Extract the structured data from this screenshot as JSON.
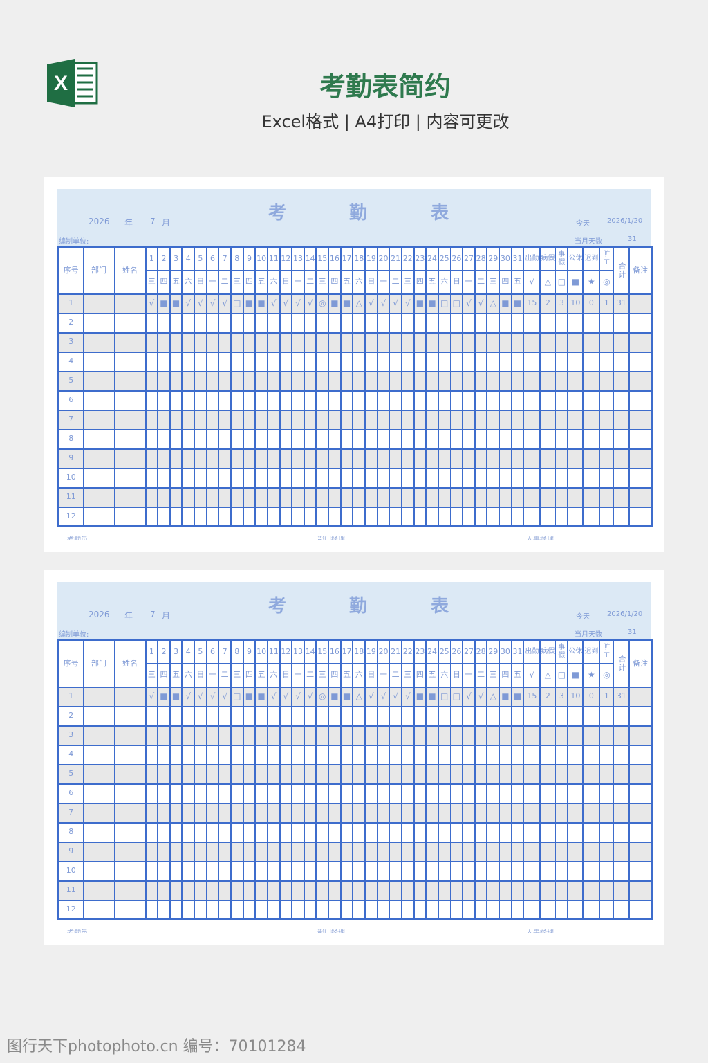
{
  "header": {
    "title": "考勤表简约",
    "subtitle": "Excel格式 | A4打印 | 内容可更改",
    "logo_letter": "X"
  },
  "sheet": {
    "title_chars": [
      "考",
      "勤",
      "表"
    ],
    "year": "2026",
    "year_label": "年",
    "month": "7",
    "month_label": "月",
    "today_label": "今天",
    "today_value": "2026/1/20",
    "days_label": "当月天数",
    "days_value": "31",
    "unit_label": "编制单位:",
    "col_seq": "序号",
    "col_dept": "部门",
    "col_name": "姓名",
    "weekdays": [
      "三",
      "四",
      "五",
      "六",
      "日",
      "一",
      "二",
      "三",
      "四",
      "五",
      "六",
      "日",
      "一",
      "二",
      "三",
      "四",
      "五",
      "六",
      "日",
      "一",
      "二",
      "三",
      "四",
      "五",
      "六",
      "日",
      "一",
      "二",
      "三",
      "四",
      "五"
    ],
    "summary_cols": [
      {
        "label": "出勤",
        "symbol": "√"
      },
      {
        "label": "病假",
        "symbol": "△"
      },
      {
        "label": "事假",
        "symbol": "□"
      },
      {
        "label": "公休",
        "symbol": "■"
      },
      {
        "label": "迟到",
        "symbol": "★"
      },
      {
        "label": "旷工",
        "symbol": "◎"
      }
    ],
    "col_total": "合计",
    "col_remark": "备注",
    "rows": [
      {
        "seq": "1",
        "dept": "",
        "name": "",
        "marks": [
          "√",
          "■",
          "■",
          "√",
          "√",
          "√",
          "√",
          "□",
          "■",
          "■",
          "√",
          "√",
          "√",
          "√",
          "◎",
          "■",
          "■",
          "△",
          "√",
          "√",
          "√",
          "√",
          "■",
          "■",
          "□",
          "□",
          "√",
          "√",
          "△",
          "■",
          "■"
        ],
        "summary": [
          "15",
          "2",
          "3",
          "10",
          "0",
          "1"
        ],
        "total": "31",
        "remark": ""
      },
      {
        "seq": "2"
      },
      {
        "seq": "3"
      },
      {
        "seq": "4"
      },
      {
        "seq": "5"
      },
      {
        "seq": "6"
      },
      {
        "seq": "7"
      },
      {
        "seq": "8"
      },
      {
        "seq": "9"
      },
      {
        "seq": "10"
      },
      {
        "seq": "11"
      },
      {
        "seq": "12"
      }
    ],
    "footer": [
      "考勤员",
      "部门经理",
      "人事经理"
    ]
  },
  "watermark": "图行天下photophoto.cn 编号：70101284",
  "colors": {
    "brand": "#2f7a4e",
    "grid": "#3d6ccc",
    "band": "#dce9f5",
    "text": "#7f9ad6"
  }
}
